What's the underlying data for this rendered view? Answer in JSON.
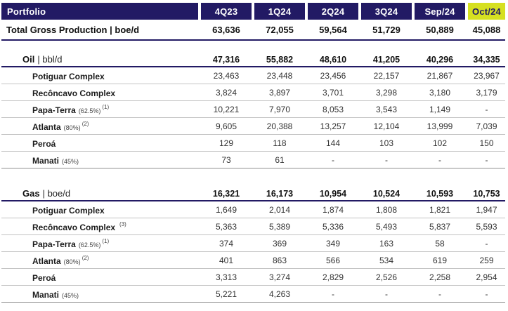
{
  "colors": {
    "navy": "#221A64",
    "lime": "#D6E021",
    "row_line": "#c3c3c3",
    "section_end_line": "#8f8f8f"
  },
  "header": {
    "portfolio_label": "Portfolio",
    "columns": [
      "4Q23",
      "1Q24",
      "2Q24",
      "3Q24",
      "Sep/24",
      "Oct/24"
    ],
    "highlighted_column": "Oct/24"
  },
  "total_row": {
    "label": "Total Gross Production",
    "unit": "| boe/d",
    "values": [
      "63,636",
      "72,055",
      "59,564",
      "51,729",
      "50,889",
      "45,088"
    ]
  },
  "sections": [
    {
      "name": "Oil",
      "unit": "| bbl/d",
      "values": [
        "47,316",
        "55,882",
        "48,610",
        "41,205",
        "40,296",
        "34,335"
      ],
      "rows": [
        {
          "name": "Potiguar Complex",
          "pct": "",
          "footnote": "",
          "values": [
            "23,463",
            "23,448",
            "23,456",
            "22,157",
            "21,867",
            "23,967"
          ]
        },
        {
          "name": "Recôncavo Complex",
          "pct": "",
          "footnote": "",
          "values": [
            "3,824",
            "3,897",
            "3,701",
            "3,298",
            "3,180",
            "3,179"
          ]
        },
        {
          "name": "Papa-Terra",
          "pct": "(62.5%)",
          "footnote": "(1)",
          "values": [
            "10,221",
            "7,970",
            "8,053",
            "3,543",
            "1,149",
            "-"
          ]
        },
        {
          "name": "Atlanta",
          "pct": "(80%)",
          "footnote": "(2)",
          "values": [
            "9,605",
            "20,388",
            "13,257",
            "12,104",
            "13,999",
            "7,039"
          ]
        },
        {
          "name": "Peroá",
          "pct": "",
          "footnote": "",
          "values": [
            "129",
            "118",
            "144",
            "103",
            "102",
            "150"
          ]
        },
        {
          "name": "Manati",
          "pct": "(45%)",
          "footnote": "",
          "values": [
            "73",
            "61",
            "-",
            "-",
            "-",
            "-"
          ]
        }
      ]
    },
    {
      "name": "Gas",
      "unit": "| boe/d",
      "values": [
        "16,321",
        "16,173",
        "10,954",
        "10,524",
        "10,593",
        "10,753"
      ],
      "rows": [
        {
          "name": "Potiguar Complex",
          "pct": "",
          "footnote": "",
          "values": [
            "1,649",
            "2,014",
            "1,874",
            "1,808",
            "1,821",
            "1,947"
          ]
        },
        {
          "name": "Recôncavo Complex",
          "pct": "",
          "footnote": "(3)",
          "values": [
            "5,363",
            "5,389",
            "5,336",
            "5,493",
            "5,837",
            "5,593"
          ]
        },
        {
          "name": "Papa-Terra",
          "pct": "(62.5%)",
          "footnote": "(1)",
          "values": [
            "374",
            "369",
            "349",
            "163",
            "58",
            "-"
          ]
        },
        {
          "name": "Atlanta",
          "pct": "(80%)",
          "footnote": "(2)",
          "values": [
            "401",
            "863",
            "566",
            "534",
            "619",
            "259"
          ]
        },
        {
          "name": "Peroá",
          "pct": "",
          "footnote": "",
          "values": [
            "3,313",
            "3,274",
            "2,829",
            "2,526",
            "2,258",
            "2,954"
          ]
        },
        {
          "name": "Manati",
          "pct": "(45%)",
          "footnote": "",
          "values": [
            "5,221",
            "4,263",
            "-",
            "-",
            "-",
            "-"
          ]
        }
      ]
    }
  ]
}
